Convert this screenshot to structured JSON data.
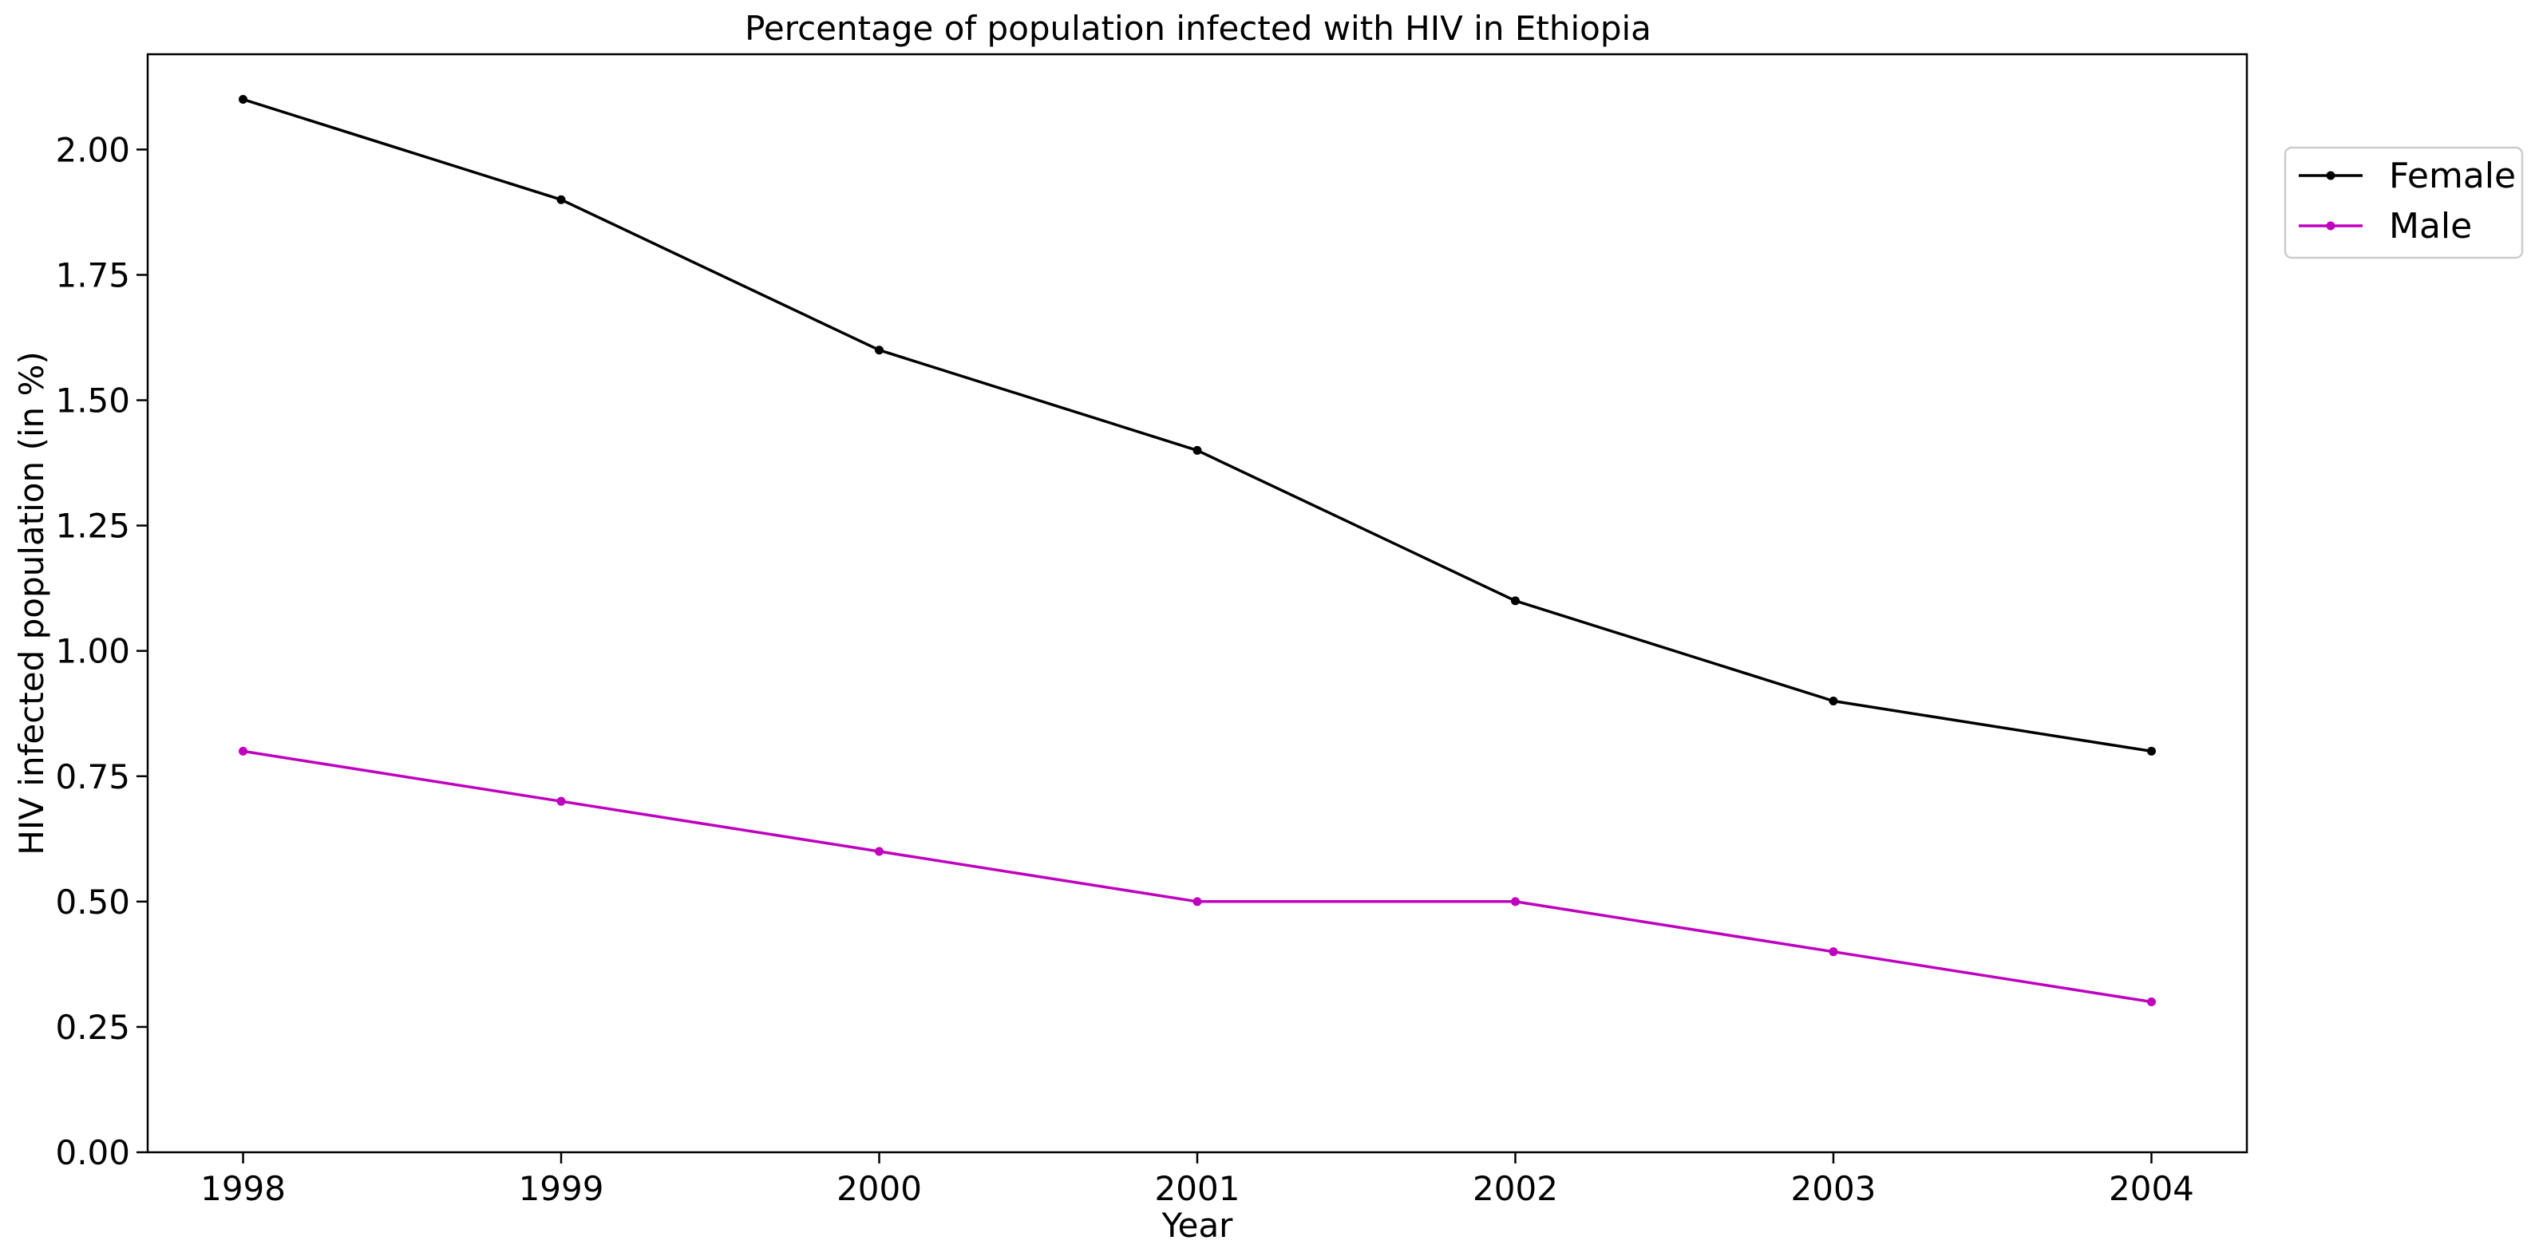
{
  "chart_data": {
    "type": "line",
    "title": "Percentage of population infected with HIV in Ethiopia",
    "xlabel": "Year",
    "ylabel": "HIV infected population (in %)",
    "x": [
      1998,
      1999,
      2000,
      2001,
      2002,
      2003,
      2004
    ],
    "x_tick_labels": [
      "1998",
      "1999",
      "2000",
      "2001",
      "2002",
      "2003",
      "2004"
    ],
    "y_ticks": [
      0,
      0.25,
      0.5,
      0.75,
      1.0,
      1.25,
      1.5,
      1.75,
      2.0
    ],
    "y_tick_labels": [
      "0.00",
      "0.25",
      "0.50",
      "0.75",
      "1.00",
      "1.25",
      "1.50",
      "1.75",
      "2.00"
    ],
    "xlim": [
      1997.7,
      2004.3
    ],
    "ylim": [
      0,
      2.19
    ],
    "grid": false,
    "legend_position": "outside upper right",
    "series": [
      {
        "name": "Female",
        "color": "#000000",
        "marker": "dot",
        "values": [
          2.1,
          1.9,
          1.6,
          1.4,
          1.1,
          0.9,
          0.8
        ]
      },
      {
        "name": "Male",
        "color": "#bf00bf",
        "marker": "dot",
        "values": [
          0.8,
          0.7,
          0.6,
          0.5,
          0.5,
          0.4,
          0.3
        ]
      }
    ]
  }
}
